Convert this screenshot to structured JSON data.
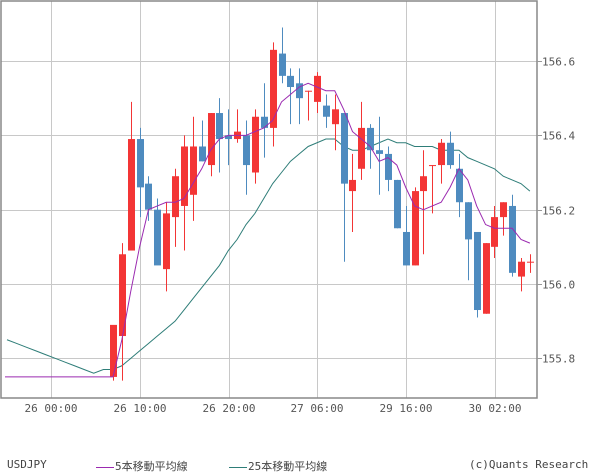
{
  "chart_data": {
    "type": "candlestick",
    "title": "USDJPY",
    "symbol": "USDJPY",
    "xlabel": "",
    "ylabel": "",
    "ylim": [
      155.7,
      156.78
    ],
    "y_ticks": [
      155.8,
      156.0,
      156.2,
      156.4,
      156.6
    ],
    "y_tick_labels": [
      "155.8",
      "156.0",
      "156.2",
      "156.4",
      "156.6"
    ],
    "x_tick_labels": [
      "26 00:00",
      "26 10:00",
      "26 20:00",
      "27 06:00",
      "29 16:00",
      "30 02:00"
    ],
    "grid": true,
    "legend_position": "bottom",
    "series": [
      {
        "name": "5本移動平均線",
        "color": "#9b2ab0",
        "type": "line"
      },
      {
        "name": "25本移動平均線",
        "color": "#2e7d78",
        "type": "line"
      }
    ],
    "colors": {
      "up": "#f33535",
      "down": "#4e8bbf",
      "grid": "#c8c8c8",
      "frame": "#888888"
    },
    "candles": [
      {
        "o": 155.75,
        "h": 155.76,
        "l": 155.74,
        "c": 155.89
      },
      {
        "o": 155.86,
        "h": 156.11,
        "l": 155.74,
        "c": 156.08
      },
      {
        "o": 156.09,
        "h": 156.49,
        "l": 156.09,
        "c": 156.39
      },
      {
        "o": 156.39,
        "h": 156.42,
        "l": 156.18,
        "c": 156.26
      },
      {
        "o": 156.27,
        "h": 156.29,
        "l": 156.17,
        "c": 156.2
      },
      {
        "o": 156.2,
        "h": 156.23,
        "l": 156.06,
        "c": 156.05
      },
      {
        "o": 156.04,
        "h": 156.22,
        "l": 155.98,
        "c": 156.19
      },
      {
        "o": 156.18,
        "h": 156.31,
        "l": 156.1,
        "c": 156.29
      },
      {
        "o": 156.21,
        "h": 156.4,
        "l": 156.09,
        "c": 156.37
      },
      {
        "o": 156.24,
        "h": 156.45,
        "l": 156.17,
        "c": 156.37
      },
      {
        "o": 156.37,
        "h": 156.44,
        "l": 156.33,
        "c": 156.33
      },
      {
        "o": 156.32,
        "h": 156.46,
        "l": 156.29,
        "c": 156.46
      },
      {
        "o": 156.46,
        "h": 156.5,
        "l": 156.3,
        "c": 156.39
      },
      {
        "o": 156.4,
        "h": 156.47,
        "l": 156.32,
        "c": 156.39
      },
      {
        "o": 156.39,
        "h": 156.47,
        "l": 156.38,
        "c": 156.41
      },
      {
        "o": 156.4,
        "h": 156.44,
        "l": 156.24,
        "c": 156.32
      },
      {
        "o": 156.3,
        "h": 156.47,
        "l": 156.27,
        "c": 156.45
      },
      {
        "o": 156.45,
        "h": 156.54,
        "l": 156.34,
        "c": 156.42
      },
      {
        "o": 156.42,
        "h": 156.65,
        "l": 156.37,
        "c": 156.63
      },
      {
        "o": 156.62,
        "h": 156.69,
        "l": 156.54,
        "c": 156.56
      },
      {
        "o": 156.56,
        "h": 156.58,
        "l": 156.43,
        "c": 156.53
      },
      {
        "o": 156.54,
        "h": 156.58,
        "l": 156.43,
        "c": 156.5
      },
      {
        "o": 156.52,
        "h": 156.52,
        "l": 156.44,
        "c": 156.52
      },
      {
        "o": 156.49,
        "h": 156.57,
        "l": 156.46,
        "c": 156.56
      },
      {
        "o": 156.48,
        "h": 156.51,
        "l": 156.42,
        "c": 156.45
      },
      {
        "o": 156.43,
        "h": 156.51,
        "l": 156.36,
        "c": 156.47
      },
      {
        "o": 156.46,
        "h": 156.46,
        "l": 156.06,
        "c": 156.27
      },
      {
        "o": 156.25,
        "h": 156.35,
        "l": 156.14,
        "c": 156.28
      },
      {
        "o": 156.31,
        "h": 156.49,
        "l": 156.28,
        "c": 156.42
      },
      {
        "o": 156.42,
        "h": 156.43,
        "l": 156.31,
        "c": 156.36
      },
      {
        "o": 156.36,
        "h": 156.45,
        "l": 156.24,
        "c": 156.35
      },
      {
        "o": 156.35,
        "h": 156.37,
        "l": 156.25,
        "c": 156.28
      },
      {
        "o": 156.28,
        "h": 156.28,
        "l": 156.15,
        "c": 156.15
      },
      {
        "o": 156.14,
        "h": 156.21,
        "l": 156.05,
        "c": 156.05
      },
      {
        "o": 156.05,
        "h": 156.26,
        "l": 156.05,
        "c": 156.25
      },
      {
        "o": 156.25,
        "h": 156.36,
        "l": 156.08,
        "c": 156.29
      },
      {
        "o": 156.32,
        "h": 156.32,
        "l": 156.19,
        "c": 156.32
      },
      {
        "o": 156.32,
        "h": 156.39,
        "l": 156.27,
        "c": 156.38
      },
      {
        "o": 156.38,
        "h": 156.41,
        "l": 156.31,
        "c": 156.32
      },
      {
        "o": 156.31,
        "h": 156.35,
        "l": 156.18,
        "c": 156.22
      },
      {
        "o": 156.22,
        "h": 156.22,
        "l": 156.01,
        "c": 156.12
      },
      {
        "o": 156.14,
        "h": 156.14,
        "l": 155.91,
        "c": 155.93
      },
      {
        "o": 155.92,
        "h": 156.11,
        "l": 155.92,
        "c": 156.11
      },
      {
        "o": 156.1,
        "h": 156.21,
        "l": 156.07,
        "c": 156.18
      },
      {
        "o": 156.18,
        "h": 156.22,
        "l": 156.13,
        "c": 156.22
      },
      {
        "o": 156.21,
        "h": 156.24,
        "l": 156.02,
        "c": 156.03
      },
      {
        "o": 156.02,
        "h": 156.07,
        "l": 155.98,
        "c": 156.06
      },
      {
        "o": 156.06,
        "h": 156.08,
        "l": 156.03,
        "c": 156.06
      }
    ],
    "ma5": [
      155.75,
      155.85,
      155.98,
      156.1,
      156.2,
      156.21,
      156.22,
      156.22,
      156.23,
      156.27,
      156.31,
      156.36,
      156.39,
      156.4,
      156.4,
      156.4,
      156.41,
      156.42,
      156.44,
      156.49,
      156.51,
      156.53,
      156.54,
      156.53,
      156.52,
      156.52,
      156.47,
      156.41,
      156.39,
      156.37,
      156.33,
      156.34,
      156.32,
      156.26,
      156.21,
      156.2,
      156.21,
      156.22,
      156.26,
      156.31,
      156.28,
      156.21,
      156.16,
      156.15,
      156.15,
      156.15,
      156.12,
      156.11
    ],
    "ma25": [
      155.77,
      155.78,
      155.8,
      155.82,
      155.84,
      155.86,
      155.88,
      155.9,
      155.93,
      155.96,
      155.99,
      156.02,
      156.05,
      156.09,
      156.12,
      156.16,
      156.19,
      156.23,
      156.27,
      156.3,
      156.33,
      156.35,
      156.37,
      156.38,
      156.39,
      156.39,
      156.37,
      156.36,
      156.36,
      156.37,
      156.38,
      156.39,
      156.38,
      156.38,
      156.37,
      156.37,
      156.37,
      156.36,
      156.36,
      156.36,
      156.34,
      156.33,
      156.32,
      156.31,
      156.29,
      156.28,
      156.27,
      156.25
    ],
    "ma25_pre": [
      155.85,
      155.84,
      155.83,
      155.82,
      155.81,
      155.8,
      155.79,
      155.78,
      155.77,
      155.76,
      155.77
    ],
    "ma5_pre_flat": 155.75
  },
  "labels": {
    "symbol": "USDJPY",
    "ma5": "5本移動平均線",
    "ma25": "25本移動平均線",
    "copyright": "(c)Quants Research"
  }
}
